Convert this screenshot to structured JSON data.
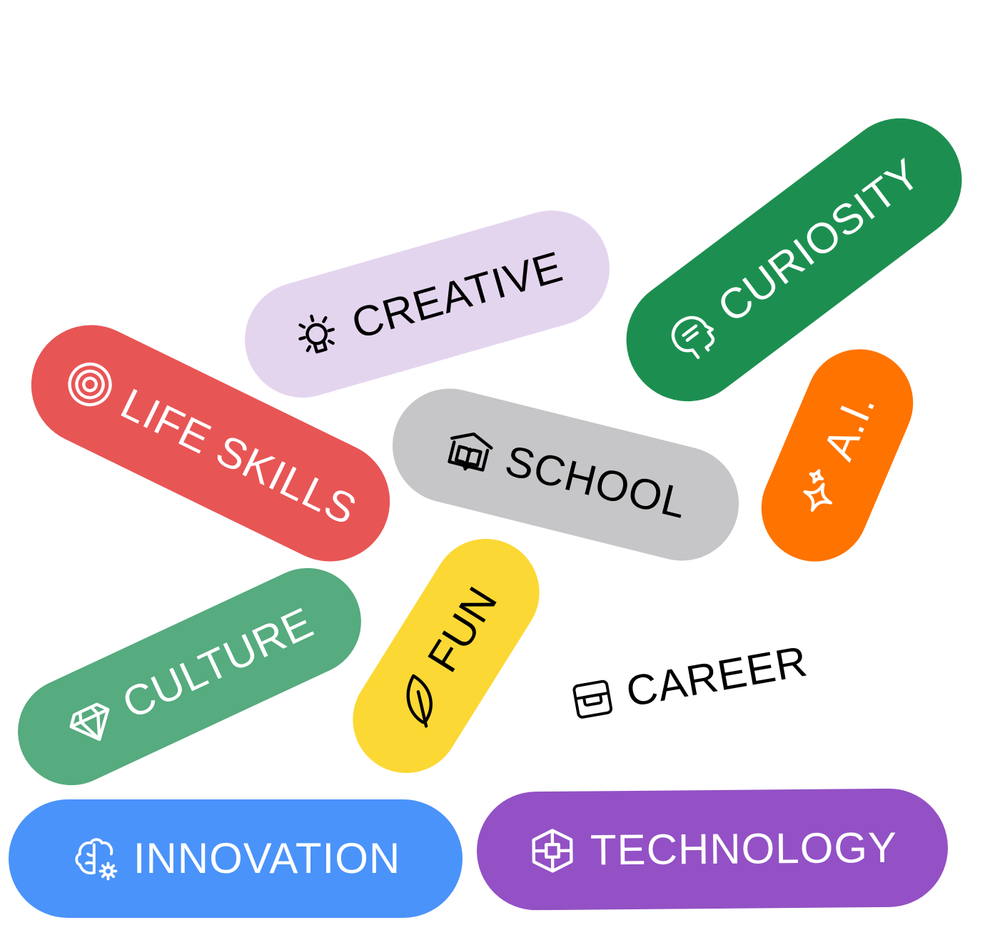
{
  "tags": {
    "curiosity": {
      "label": "CURIOSITY",
      "icon": "head-speech-icon",
      "bg": "#1c8f50",
      "fg": "#ffffff"
    },
    "creative": {
      "label": "CREATIVE",
      "icon": "lightbulb-icon",
      "bg": "#e4d5ef",
      "fg": "#000000"
    },
    "life_skills": {
      "label": "LIFE SKILLS",
      "icon": "target-icon",
      "bg": "#e85555",
      "fg": "#ffffff"
    },
    "school": {
      "label": "SCHOOL",
      "icon": "book-icon",
      "bg": "#c6c6c8",
      "fg": "#000000"
    },
    "ai": {
      "label": "A.I.",
      "icon": "sparkle-icon",
      "bg": "#ff7300",
      "fg": "#ffffff"
    },
    "culture": {
      "label": "CULTURE",
      "icon": "diamond-icon",
      "bg": "#56ab7f",
      "fg": "#ffffff"
    },
    "fun": {
      "label": "FUN",
      "icon": "leaf-icon",
      "bg": "#fcd834",
      "fg": "#000000"
    },
    "career": {
      "label": "CAREER",
      "icon": "briefcase-icon",
      "bg": "transparent",
      "fg": "#000000"
    },
    "innovation": {
      "label": "INNOVATION",
      "icon": "brain-gear-icon",
      "bg": "#4a93fa",
      "fg": "#ffffff"
    },
    "technology": {
      "label": "TECHNOLOGY",
      "icon": "cube-icon",
      "bg": "#9351c5",
      "fg": "#ffffff"
    }
  }
}
